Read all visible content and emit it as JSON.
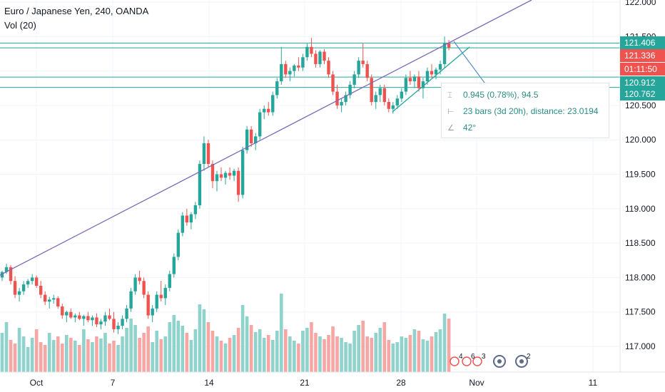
{
  "header": {
    "title": "Euro / Japanese Yen, 240, OANDA",
    "indicator": "Vol (20)"
  },
  "measure": {
    "price_change": "0.945 (0.78%), 94.5",
    "bars_distance": "23 bars (3d 20h), distance: 23.0194",
    "angle": "42°"
  },
  "price_labels": [
    {
      "text": "121.406",
      "color": "#26a69a"
    },
    {
      "text": "121.336",
      "color": "#ef5350"
    },
    {
      "text": "01:11:50",
      "color": "#ef5350"
    },
    {
      "text": "120.912",
      "color": "#26a69a"
    },
    {
      "text": "120.762",
      "color": "#26a69a"
    }
  ],
  "colors": {
    "up": "#26a69a",
    "down": "#ef5350",
    "up_vol": "#8fd3cc",
    "down_vol": "#f7a6a4",
    "trendline": "#7b68b8",
    "hline": "#26a69a",
    "arrow": "#5b8ac7"
  },
  "chart_data": {
    "type": "candlestick",
    "title": "Euro / Japanese Yen, 240, OANDA",
    "ylim": [
      116.7,
      122.1
    ],
    "y_ticks": [
      "117.000",
      "117.500",
      "118.000",
      "118.500",
      "119.000",
      "119.500",
      "120.000",
      "120.500",
      "121.000",
      "121.500",
      "122.000"
    ],
    "x_ticks": [
      "Oct",
      "7",
      "14",
      "21",
      "28",
      "Nov",
      "11"
    ],
    "horizontal_lines": [
      121.406,
      121.336,
      120.912,
      120.762
    ],
    "candles": [
      [
        118.0,
        118.1,
        117.95,
        118.08
      ],
      [
        118.08,
        118.2,
        118.05,
        118.15
      ],
      [
        118.15,
        118.18,
        117.9,
        117.95
      ],
      [
        117.95,
        118.02,
        117.7,
        117.75
      ],
      [
        117.75,
        117.85,
        117.65,
        117.8
      ],
      [
        117.8,
        117.95,
        117.75,
        117.9
      ],
      [
        117.9,
        117.98,
        117.85,
        117.95
      ],
      [
        117.95,
        118.05,
        117.9,
        118.0
      ],
      [
        118.0,
        118.03,
        117.85,
        117.88
      ],
      [
        117.88,
        117.95,
        117.7,
        117.75
      ],
      [
        117.75,
        117.8,
        117.6,
        117.65
      ],
      [
        117.65,
        117.72,
        117.55,
        117.68
      ],
      [
        117.68,
        117.75,
        117.62,
        117.7
      ],
      [
        117.7,
        117.73,
        117.55,
        117.58
      ],
      [
        117.58,
        117.62,
        117.4,
        117.45
      ],
      [
        117.45,
        117.52,
        117.35,
        117.5
      ],
      [
        117.5,
        117.55,
        117.4,
        117.42
      ],
      [
        117.42,
        117.48,
        117.35,
        117.45
      ],
      [
        117.45,
        117.5,
        117.38,
        117.4
      ],
      [
        117.4,
        117.46,
        117.3,
        117.44
      ],
      [
        117.44,
        117.5,
        117.35,
        117.38
      ],
      [
        117.38,
        117.45,
        117.3,
        117.42
      ],
      [
        117.42,
        117.48,
        117.28,
        117.32
      ],
      [
        117.32,
        117.4,
        117.25,
        117.36
      ],
      [
        117.36,
        117.5,
        117.3,
        117.45
      ],
      [
        117.45,
        117.55,
        117.38,
        117.4
      ],
      [
        117.4,
        117.5,
        117.2,
        117.25
      ],
      [
        117.25,
        117.35,
        117.18,
        117.3
      ],
      [
        117.3,
        117.45,
        117.25,
        117.4
      ],
      [
        117.4,
        117.6,
        117.35,
        117.55
      ],
      [
        117.55,
        117.85,
        117.5,
        117.8
      ],
      [
        117.8,
        118.05,
        117.75,
        118.0
      ],
      [
        118.0,
        118.1,
        117.9,
        117.95
      ],
      [
        117.95,
        118.0,
        117.7,
        117.75
      ],
      [
        117.75,
        117.8,
        117.4,
        117.45
      ],
      [
        117.45,
        117.6,
        117.35,
        117.55
      ],
      [
        117.55,
        117.8,
        117.5,
        117.75
      ],
      [
        117.75,
        117.95,
        117.65,
        117.7
      ],
      [
        117.7,
        117.9,
        117.6,
        117.85
      ],
      [
        117.85,
        118.1,
        117.8,
        118.05
      ],
      [
        118.05,
        118.35,
        118.0,
        118.3
      ],
      [
        118.3,
        118.7,
        118.25,
        118.65
      ],
      [
        118.65,
        118.95,
        118.6,
        118.9
      ],
      [
        118.9,
        119.0,
        118.75,
        118.8
      ],
      [
        118.8,
        118.95,
        118.7,
        118.92
      ],
      [
        118.92,
        119.1,
        118.85,
        119.05
      ],
      [
        119.05,
        119.7,
        119.0,
        119.65
      ],
      [
        119.65,
        120.05,
        119.55,
        119.95
      ],
      [
        119.95,
        120.0,
        119.6,
        119.65
      ],
      [
        119.65,
        119.7,
        119.3,
        119.4
      ],
      [
        119.4,
        119.55,
        119.25,
        119.5
      ],
      [
        119.5,
        119.6,
        119.4,
        119.45
      ],
      [
        119.45,
        119.55,
        119.35,
        119.52
      ],
      [
        119.52,
        119.6,
        119.42,
        119.48
      ],
      [
        119.48,
        119.58,
        119.4,
        119.55
      ],
      [
        119.55,
        119.6,
        119.1,
        119.2
      ],
      [
        119.2,
        119.9,
        119.15,
        119.85
      ],
      [
        119.85,
        120.2,
        119.8,
        120.15
      ],
      [
        120.15,
        120.2,
        119.9,
        119.95
      ],
      [
        119.95,
        120.1,
        119.85,
        120.05
      ],
      [
        120.05,
        120.45,
        120.0,
        120.4
      ],
      [
        120.4,
        120.5,
        120.3,
        120.45
      ],
      [
        120.45,
        120.55,
        120.35,
        120.4
      ],
      [
        120.4,
        120.7,
        120.35,
        120.65
      ],
      [
        120.65,
        120.9,
        120.6,
        120.85
      ],
      [
        120.85,
        121.35,
        120.8,
        121.1
      ],
      [
        121.1,
        121.15,
        120.9,
        120.95
      ],
      [
        120.95,
        121.05,
        120.85,
        121.0
      ],
      [
        121.0,
        121.1,
        120.92,
        121.08
      ],
      [
        121.08,
        121.2,
        121.0,
        121.05
      ],
      [
        121.05,
        121.25,
        121.0,
        121.2
      ],
      [
        121.2,
        121.4,
        121.15,
        121.35
      ],
      [
        121.35,
        121.48,
        121.2,
        121.25
      ],
      [
        121.25,
        121.3,
        121.05,
        121.1
      ],
      [
        121.1,
        121.3,
        121.05,
        121.28
      ],
      [
        121.28,
        121.32,
        121.1,
        121.15
      ],
      [
        121.15,
        121.2,
        120.9,
        120.95
      ],
      [
        120.95,
        121.0,
        120.65,
        120.7
      ],
      [
        120.7,
        120.8,
        120.45,
        120.5
      ],
      [
        120.5,
        120.6,
        120.4,
        120.55
      ],
      [
        120.55,
        120.7,
        120.5,
        120.65
      ],
      [
        120.65,
        120.85,
        120.6,
        120.8
      ],
      [
        120.8,
        121.0,
        120.75,
        120.95
      ],
      [
        120.95,
        121.2,
        120.9,
        121.15
      ],
      [
        121.15,
        121.4,
        121.05,
        121.1
      ],
      [
        121.1,
        121.15,
        120.85,
        120.9
      ],
      [
        120.9,
        120.95,
        120.5,
        120.55
      ],
      [
        120.55,
        120.7,
        120.45,
        120.65
      ],
      [
        120.65,
        120.8,
        120.55,
        120.75
      ],
      [
        120.75,
        120.8,
        120.5,
        120.55
      ],
      [
        120.55,
        120.6,
        120.4,
        120.45
      ],
      [
        120.45,
        120.55,
        120.38,
        120.5
      ],
      [
        120.5,
        120.65,
        120.45,
        120.6
      ],
      [
        120.6,
        120.75,
        120.55,
        120.7
      ],
      [
        120.7,
        120.95,
        120.65,
        120.9
      ],
      [
        120.9,
        121.0,
        120.8,
        120.85
      ],
      [
        120.85,
        120.95,
        120.75,
        120.92
      ],
      [
        120.92,
        121.0,
        120.7,
        120.75
      ],
      [
        120.75,
        120.9,
        120.6,
        120.85
      ],
      [
        120.85,
        121.05,
        120.8,
        121.0
      ],
      [
        121.0,
        121.1,
        120.9,
        120.95
      ],
      [
        120.95,
        121.05,
        120.88,
        121.02
      ],
      [
        121.02,
        121.15,
        120.95,
        121.1
      ],
      [
        121.1,
        121.5,
        121.05,
        121.4
      ],
      [
        121.4,
        121.45,
        121.3,
        121.34
      ]
    ],
    "volume": [
      55,
      70,
      45,
      40,
      62,
      50,
      35,
      48,
      60,
      42,
      38,
      55,
      45,
      50,
      40,
      52,
      48,
      44,
      38,
      60,
      46,
      42,
      50,
      47,
      55,
      40,
      44,
      38,
      50,
      62,
      75,
      66,
      48,
      55,
      64,
      42,
      58,
      46,
      50,
      70,
      80,
      72,
      65,
      55,
      45,
      60,
      95,
      88,
      70,
      58,
      50,
      44,
      40,
      48,
      52,
      62,
      94,
      78,
      66,
      56,
      60,
      48,
      52,
      45,
      58,
      110,
      60,
      50,
      44,
      40,
      58,
      62,
      70,
      55,
      50,
      46,
      52,
      64,
      50,
      48,
      42,
      40,
      58,
      66,
      72,
      50,
      48,
      55,
      62,
      70,
      45,
      40,
      42,
      50,
      48,
      52,
      60,
      58,
      46,
      44,
      50,
      56,
      60,
      82,
      75
    ]
  },
  "footer_badges": [
    "4",
    "6",
    "3",
    "2"
  ]
}
